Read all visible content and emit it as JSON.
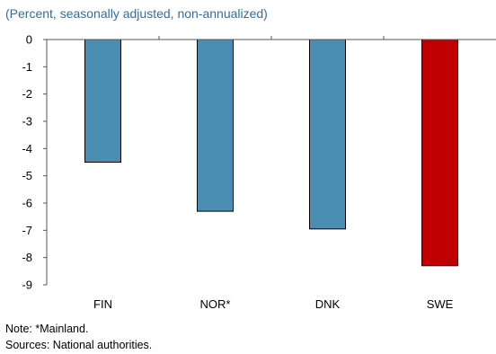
{
  "subtitle": "(Percent, seasonally adjusted, non-annualized)",
  "notes": {
    "note": "Note: *Mainland.",
    "sources": "Sources: National authorities."
  },
  "colors": {
    "bar_default": "#4a8fb3",
    "bar_highlight": "#c00000"
  },
  "chart_data": {
    "type": "bar",
    "title": "",
    "xlabel": "",
    "ylabel": "",
    "categories": [
      "FIN",
      "NOR*",
      "DNK",
      "SWE"
    ],
    "values": [
      -4.5,
      -6.3,
      -6.95,
      -8.3
    ],
    "highlight": [
      "SWE"
    ],
    "ylim": [
      -9,
      0
    ],
    "yticks": [
      "0",
      "-1",
      "-2",
      "-3",
      "-4",
      "-5",
      "-6",
      "-7",
      "-8",
      "-9"
    ],
    "grid": false
  }
}
